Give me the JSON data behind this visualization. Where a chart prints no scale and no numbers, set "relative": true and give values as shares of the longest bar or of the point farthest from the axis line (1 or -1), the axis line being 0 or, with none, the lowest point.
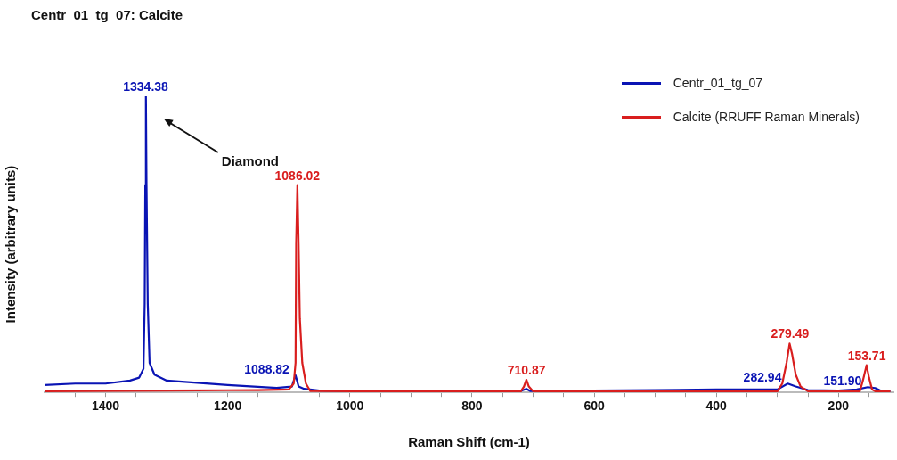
{
  "chart_data": {
    "type": "line",
    "title": "Centr_01_tg_07: Calcite",
    "xlabel": "Raman Shift (cm-1)",
    "ylabel": "Intensity (arbitrary units)",
    "relative": true,
    "legend": "top right",
    "grid": false,
    "marker": "none",
    "line_style": "solid",
    "xlim": [
      1500,
      110
    ],
    "xticks": [
      {
        "value": 1450,
        "label": null
      },
      1400,
      {
        "value": 1350,
        "label": null
      },
      {
        "value": 1300,
        "label": null
      },
      {
        "value": 1250,
        "label": null
      },
      1200,
      {
        "value": 1150,
        "label": null
      },
      {
        "value": 1100,
        "label": null
      },
      {
        "value": 1050,
        "label": null
      },
      1000,
      {
        "value": 950,
        "label": null
      },
      {
        "value": 900,
        "label": null
      },
      {
        "value": 850,
        "label": null
      },
      800,
      {
        "value": 750,
        "label": null
      },
      {
        "value": 700,
        "label": null
      },
      {
        "value": 650,
        "label": null
      },
      600,
      {
        "value": 550,
        "label": null
      },
      {
        "value": 500,
        "label": null
      },
      {
        "value": 450,
        "label": null
      },
      400,
      {
        "value": 350,
        "label": null
      },
      {
        "value": 300,
        "label": null
      },
      {
        "value": 250,
        "label": null
      },
      200,
      {
        "value": 150,
        "label": null
      }
    ],
    "annotations": [
      "Diamond",
      {
        "text": "1334.38",
        "x": 1334.38,
        "y": 1
      },
      {
        "text": "1086.02",
        "x": 1086.02,
        "y": 0.7
      },
      {
        "text": "1088.82",
        "x": 1088.82,
        "y": 0.058
      },
      {
        "text": "710.87",
        "x": 710.87,
        "y": 0.043
      },
      {
        "text": "279.49",
        "x": 279.49,
        "y": 0.165
      },
      {
        "text": "282.94",
        "x": 282.94,
        "y": 0.03
      },
      {
        "text": "153.71",
        "x": 153.71,
        "y": 0.092
      },
      {
        "text": "151.90",
        "x": 151.9,
        "y": 0.018
      }
    ],
    "series": [
      {
        "name": "Centr_01_tg_07",
        "color": "#0a14b4",
        "x": [
          1500,
          1450,
          1400,
          1360,
          1345,
          1338,
          1336,
          1335,
          1334,
          1333,
          1331,
          1328,
          1320,
          1300,
          1200,
          1120,
          1095,
          1089,
          1084,
          1075,
          1050,
          1000,
          900,
          720,
          711,
          705,
          500,
          400,
          300,
          283,
          270,
          250,
          200,
          170,
          152,
          140,
          130,
          115
        ],
        "values": [
          0.025,
          0.03,
          0.03,
          0.04,
          0.05,
          0.08,
          0.3,
          0.7,
          1,
          0.7,
          0.3,
          0.1,
          0.06,
          0.04,
          0.025,
          0.015,
          0.02,
          0.058,
          0.02,
          0.012,
          0.006,
          0.005,
          0.005,
          0.005,
          0.012,
          0.005,
          0.008,
          0.01,
          0.01,
          0.03,
          0.02,
          0.008,
          0.006,
          0.01,
          0.018,
          0.015,
          0.005,
          0.005
        ]
      },
      {
        "name": "Calcite (RRUFF Raman Minerals)",
        "color": "#d91e1e",
        "x": [
          1500,
          1300,
          1150,
          1100,
          1092,
          1089,
          1088,
          1086,
          1084,
          1082,
          1078,
          1072,
          1065,
          1000,
          720,
          715,
          711,
          707,
          700,
          300,
          292,
          285,
          280,
          276,
          270,
          262,
          250,
          165,
          160,
          154,
          150,
          145,
          140,
          115
        ],
        "values": [
          0.004,
          0.006,
          0.008,
          0.01,
          0.03,
          0.1,
          0.5,
          0.7,
          0.5,
          0.25,
          0.1,
          0.03,
          0.005,
          0.004,
          0.004,
          0.02,
          0.043,
          0.02,
          0.004,
          0.004,
          0.03,
          0.1,
          0.165,
          0.13,
          0.06,
          0.02,
          0.004,
          0.004,
          0.04,
          0.092,
          0.05,
          0.01,
          0.004,
          0.004
        ]
      }
    ]
  }
}
